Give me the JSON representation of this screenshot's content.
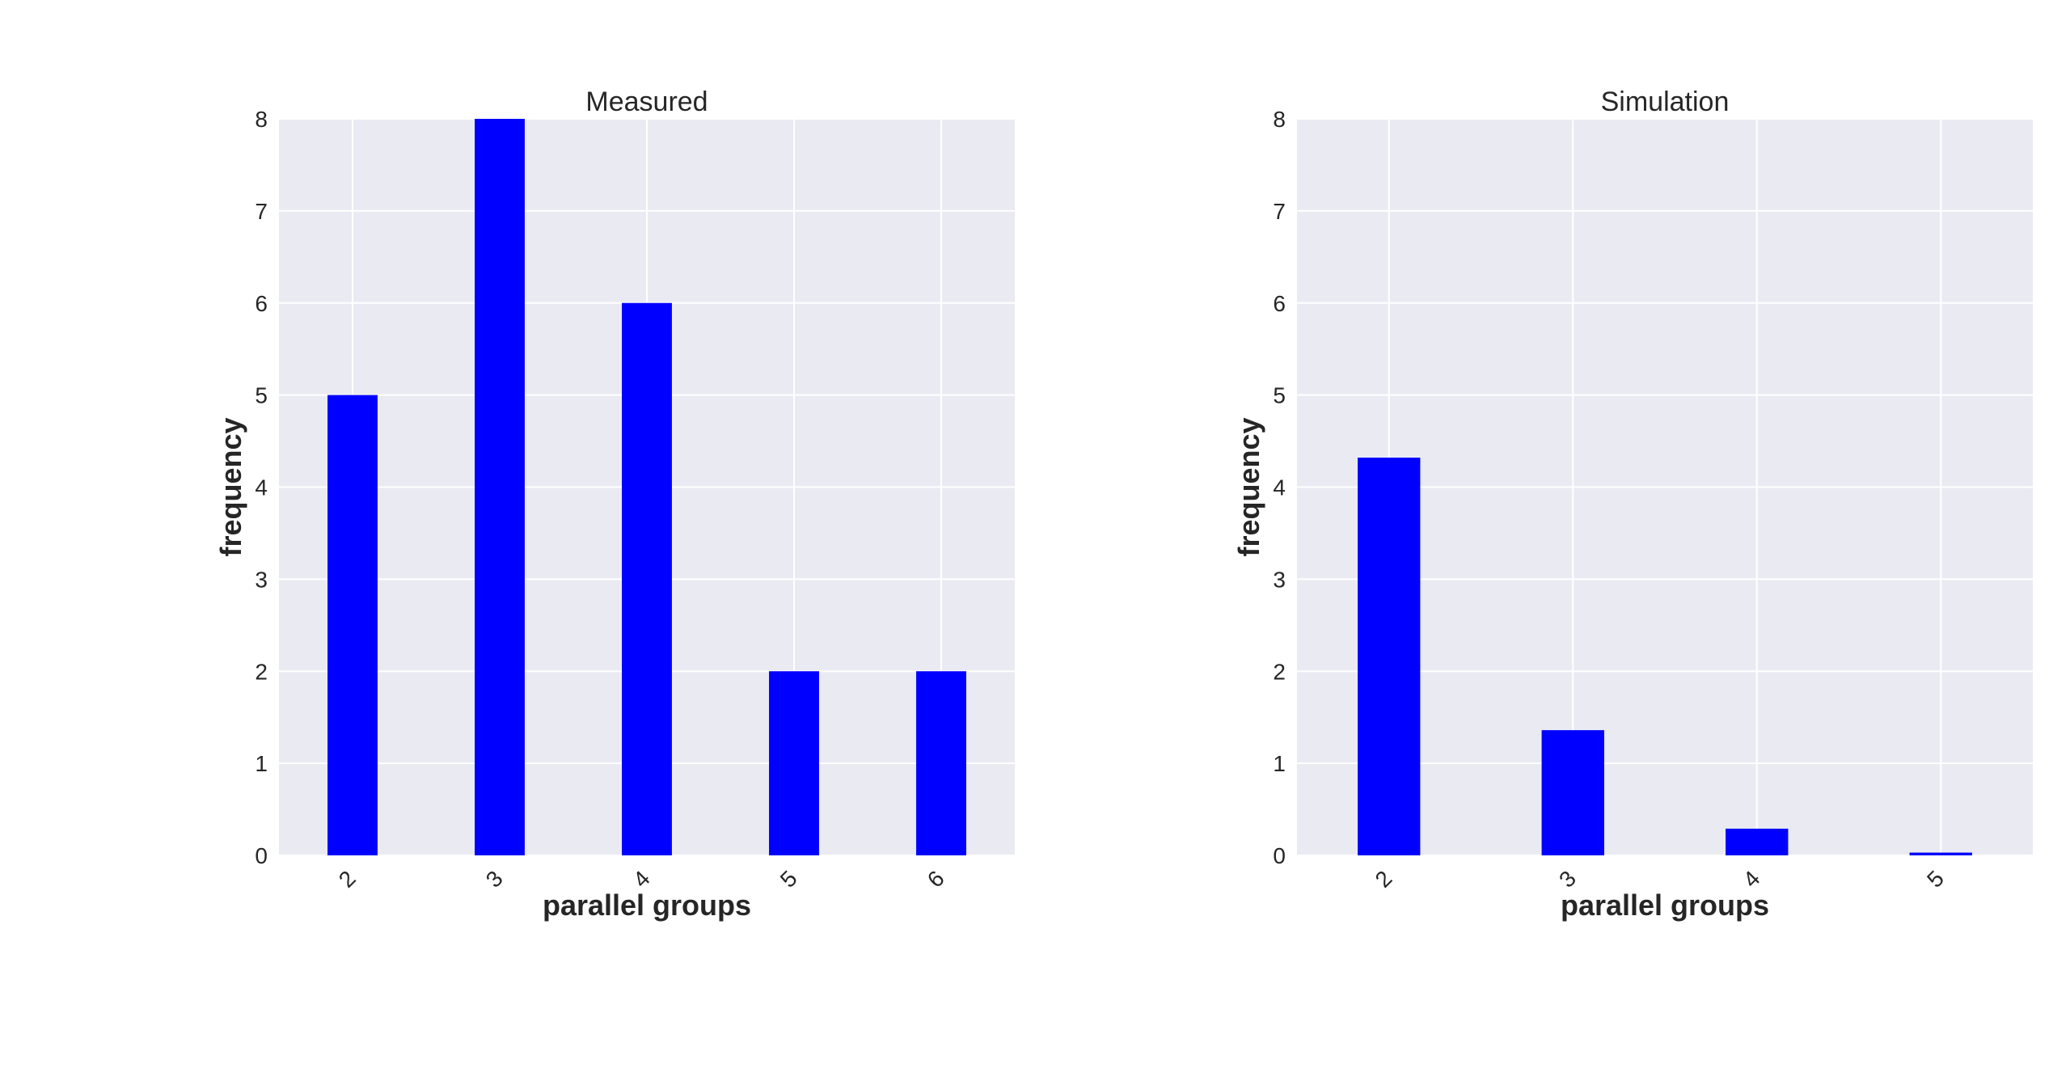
{
  "chart_data": [
    {
      "type": "bar",
      "title": "Measured",
      "xlabel": "parallel groups",
      "ylabel": "frequency",
      "categories": [
        "2",
        "3",
        "4",
        "5",
        "6"
      ],
      "values": [
        5,
        8,
        6,
        2,
        2
      ],
      "ylim": [
        0,
        8
      ],
      "yticks": [
        "0",
        "1",
        "2",
        "3",
        "4",
        "5",
        "6",
        "7",
        "8"
      ],
      "grid": true,
      "bar_color": "#0000ff",
      "background_color": "#eaeaf2"
    },
    {
      "type": "bar",
      "title": "Simulation",
      "xlabel": "parallel groups",
      "ylabel": "frequency",
      "categories": [
        "2",
        "3",
        "4",
        "5"
      ],
      "values": [
        4.32,
        1.36,
        0.29,
        0.03
      ],
      "ylim": [
        0,
        8
      ],
      "yticks": [
        "0",
        "1",
        "2",
        "3",
        "4",
        "5",
        "6",
        "7",
        "8"
      ],
      "grid": true,
      "bar_color": "#0000ff",
      "background_color": "#eaeaf2"
    }
  ]
}
